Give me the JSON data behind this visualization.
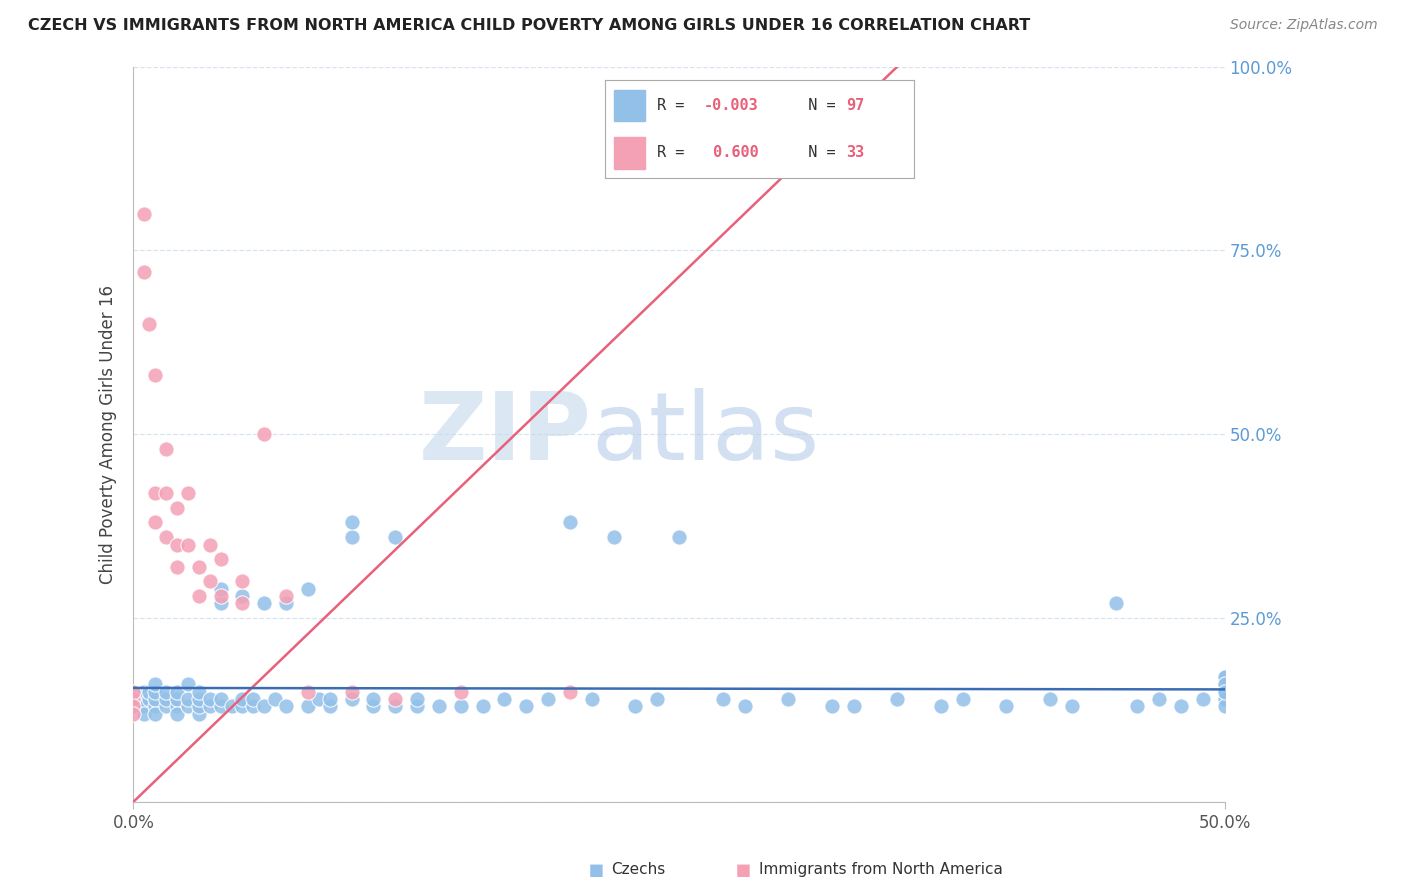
{
  "title": "CZECH VS IMMIGRANTS FROM NORTH AMERICA CHILD POVERTY AMONG GIRLS UNDER 16 CORRELATION CHART",
  "source": "Source: ZipAtlas.com",
  "ylabel": "Child Poverty Among Girls Under 16",
  "color_blue": "#92C0E8",
  "color_pink": "#F4A0B5",
  "color_line_blue": "#3B6DB5",
  "color_line_pink": "#E8607A",
  "watermark1": "ZIP",
  "watermark2": "atlas",
  "watermark_color": "#C8D8EE",
  "czechs_x": [
    0.0,
    0.0,
    0.0,
    0.005,
    0.005,
    0.005,
    0.005,
    0.007,
    0.007,
    0.01,
    0.01,
    0.01,
    0.01,
    0.01,
    0.015,
    0.015,
    0.015,
    0.02,
    0.02,
    0.02,
    0.02,
    0.025,
    0.025,
    0.025,
    0.03,
    0.03,
    0.03,
    0.03,
    0.035,
    0.035,
    0.04,
    0.04,
    0.04,
    0.04,
    0.045,
    0.05,
    0.05,
    0.05,
    0.055,
    0.055,
    0.06,
    0.06,
    0.065,
    0.07,
    0.07,
    0.08,
    0.08,
    0.085,
    0.09,
    0.09,
    0.1,
    0.1,
    0.1,
    0.11,
    0.11,
    0.12,
    0.12,
    0.13,
    0.13,
    0.14,
    0.15,
    0.16,
    0.17,
    0.18,
    0.19,
    0.2,
    0.21,
    0.22,
    0.23,
    0.24,
    0.25,
    0.27,
    0.28,
    0.3,
    0.32,
    0.33,
    0.35,
    0.37,
    0.38,
    0.4,
    0.42,
    0.43,
    0.45,
    0.46,
    0.47,
    0.48,
    0.49,
    0.5,
    0.5,
    0.5,
    0.5,
    0.5,
    0.5,
    0.5,
    0.5,
    0.5,
    0.5
  ],
  "czechs_y": [
    0.15,
    0.14,
    0.13,
    0.14,
    0.15,
    0.13,
    0.12,
    0.14,
    0.15,
    0.13,
    0.14,
    0.15,
    0.16,
    0.12,
    0.13,
    0.14,
    0.15,
    0.13,
    0.14,
    0.12,
    0.15,
    0.13,
    0.14,
    0.16,
    0.12,
    0.13,
    0.14,
    0.15,
    0.13,
    0.14,
    0.27,
    0.29,
    0.13,
    0.14,
    0.13,
    0.28,
    0.13,
    0.14,
    0.13,
    0.14,
    0.27,
    0.13,
    0.14,
    0.27,
    0.13,
    0.29,
    0.13,
    0.14,
    0.13,
    0.14,
    0.36,
    0.38,
    0.14,
    0.13,
    0.14,
    0.36,
    0.13,
    0.13,
    0.14,
    0.13,
    0.13,
    0.13,
    0.14,
    0.13,
    0.14,
    0.38,
    0.14,
    0.36,
    0.13,
    0.14,
    0.36,
    0.14,
    0.13,
    0.14,
    0.13,
    0.13,
    0.14,
    0.13,
    0.14,
    0.13,
    0.14,
    0.13,
    0.27,
    0.13,
    0.14,
    0.13,
    0.14,
    0.17,
    0.14,
    0.16,
    0.14,
    0.15,
    0.17,
    0.14,
    0.13,
    0.16,
    0.15
  ],
  "immigrants_x": [
    0.0,
    0.0,
    0.0,
    0.0,
    0.005,
    0.005,
    0.007,
    0.01,
    0.01,
    0.01,
    0.015,
    0.015,
    0.015,
    0.02,
    0.02,
    0.02,
    0.025,
    0.025,
    0.03,
    0.03,
    0.035,
    0.035,
    0.04,
    0.04,
    0.05,
    0.05,
    0.06,
    0.07,
    0.08,
    0.1,
    0.12,
    0.15,
    0.2
  ],
  "immigrants_y": [
    0.14,
    0.15,
    0.13,
    0.12,
    0.8,
    0.72,
    0.65,
    0.58,
    0.42,
    0.38,
    0.48,
    0.42,
    0.36,
    0.4,
    0.35,
    0.32,
    0.35,
    0.42,
    0.32,
    0.28,
    0.3,
    0.35,
    0.28,
    0.33,
    0.27,
    0.3,
    0.5,
    0.28,
    0.15,
    0.15,
    0.14,
    0.15,
    0.15
  ],
  "xlim": [
    0.0,
    0.5
  ],
  "ylim": [
    0.0,
    1.0
  ],
  "yticks": [
    0.0,
    0.25,
    0.5,
    0.75,
    1.0
  ],
  "ytick_labels": [
    "",
    "25.0%",
    "50.0%",
    "75.0%",
    "100.0%"
  ],
  "pink_line_x": [
    0.0,
    0.35
  ],
  "pink_line_y": [
    0.0,
    1.0
  ],
  "blue_line_x": [
    0.0,
    0.5
  ],
  "blue_line_y": [
    0.155,
    0.153
  ]
}
